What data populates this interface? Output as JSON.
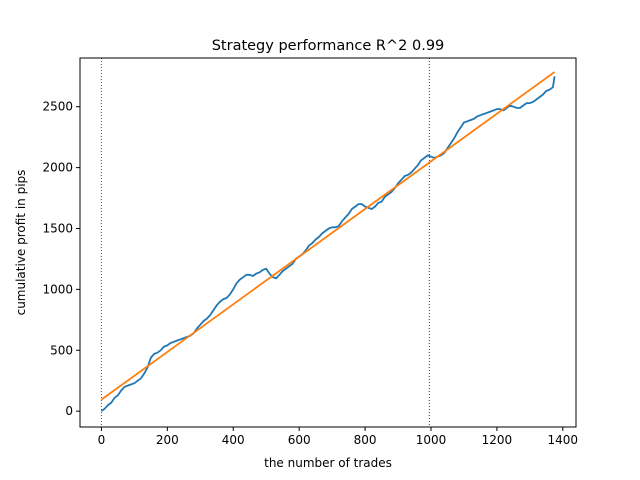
{
  "chart_data": {
    "type": "line",
    "title": "Strategy performance R^2 0.99",
    "xlabel": "the number of trades",
    "ylabel": "cumulative profit in pips",
    "xlim": [
      -65,
      1440
    ],
    "ylim": [
      -130,
      2900
    ],
    "xticks": [
      0,
      200,
      400,
      600,
      800,
      1000,
      1200,
      1400
    ],
    "yticks": [
      0,
      500,
      1000,
      1500,
      2000,
      2500
    ],
    "grid": false,
    "legend": "none",
    "vlines": [
      {
        "x": 0,
        "color": "#ff0000",
        "style": "dotted"
      },
      {
        "x": 995,
        "color": "#800080",
        "style": "dotted"
      }
    ],
    "series": [
      {
        "color": "#1f77b4",
        "x": [
          0,
          10,
          20,
          30,
          40,
          50,
          60,
          70,
          80,
          90,
          100,
          110,
          120,
          130,
          140,
          150,
          160,
          170,
          180,
          190,
          200,
          210,
          220,
          230,
          240,
          250,
          260,
          270,
          280,
          290,
          300,
          310,
          320,
          330,
          340,
          350,
          360,
          370,
          380,
          390,
          400,
          410,
          420,
          430,
          440,
          450,
          460,
          470,
          480,
          490,
          500,
          510,
          520,
          530,
          540,
          550,
          560,
          570,
          580,
          590,
          600,
          610,
          620,
          630,
          640,
          650,
          660,
          670,
          680,
          690,
          700,
          710,
          720,
          730,
          740,
          750,
          760,
          770,
          780,
          790,
          800,
          810,
          820,
          830,
          840,
          850,
          860,
          870,
          880,
          890,
          900,
          910,
          920,
          930,
          940,
          950,
          960,
          970,
          980,
          990,
          1000,
          1010,
          1020,
          1030,
          1040,
          1050,
          1060,
          1070,
          1080,
          1090,
          1100,
          1110,
          1120,
          1130,
          1140,
          1150,
          1160,
          1170,
          1180,
          1190,
          1200,
          1210,
          1220,
          1230,
          1240,
          1250,
          1260,
          1270,
          1280,
          1290,
          1300,
          1310,
          1320,
          1330,
          1340,
          1350,
          1360,
          1370,
          1375
        ],
        "y": [
          0,
          20,
          50,
          70,
          110,
          130,
          170,
          200,
          210,
          220,
          230,
          250,
          270,
          310,
          360,
          440,
          470,
          480,
          500,
          530,
          540,
          560,
          570,
          580,
          590,
          600,
          610,
          620,
          640,
          680,
          710,
          740,
          760,
          790,
          830,
          870,
          900,
          920,
          930,
          960,
          1000,
          1050,
          1080,
          1100,
          1120,
          1120,
          1110,
          1130,
          1140,
          1160,
          1170,
          1130,
          1100,
          1090,
          1120,
          1150,
          1170,
          1190,
          1210,
          1250,
          1270,
          1290,
          1320,
          1360,
          1380,
          1410,
          1430,
          1460,
          1480,
          1500,
          1510,
          1510,
          1520,
          1560,
          1590,
          1620,
          1660,
          1680,
          1700,
          1700,
          1680,
          1670,
          1660,
          1680,
          1710,
          1720,
          1760,
          1780,
          1800,
          1830,
          1870,
          1900,
          1930,
          1940,
          1960,
          1990,
          2020,
          2060,
          2080,
          2100,
          2090,
          2080,
          2090,
          2100,
          2120,
          2160,
          2200,
          2240,
          2290,
          2330,
          2370,
          2380,
          2390,
          2400,
          2420,
          2430,
          2440,
          2450,
          2460,
          2470,
          2480,
          2480,
          2470,
          2490,
          2510,
          2500,
          2490,
          2490,
          2510,
          2530,
          2530,
          2540,
          2560,
          2580,
          2600,
          2630,
          2640,
          2660,
          2750
        ]
      },
      {
        "color": "#ff7f0e",
        "x": [
          0,
          1375
        ],
        "y": [
          95,
          2785
        ]
      }
    ]
  }
}
